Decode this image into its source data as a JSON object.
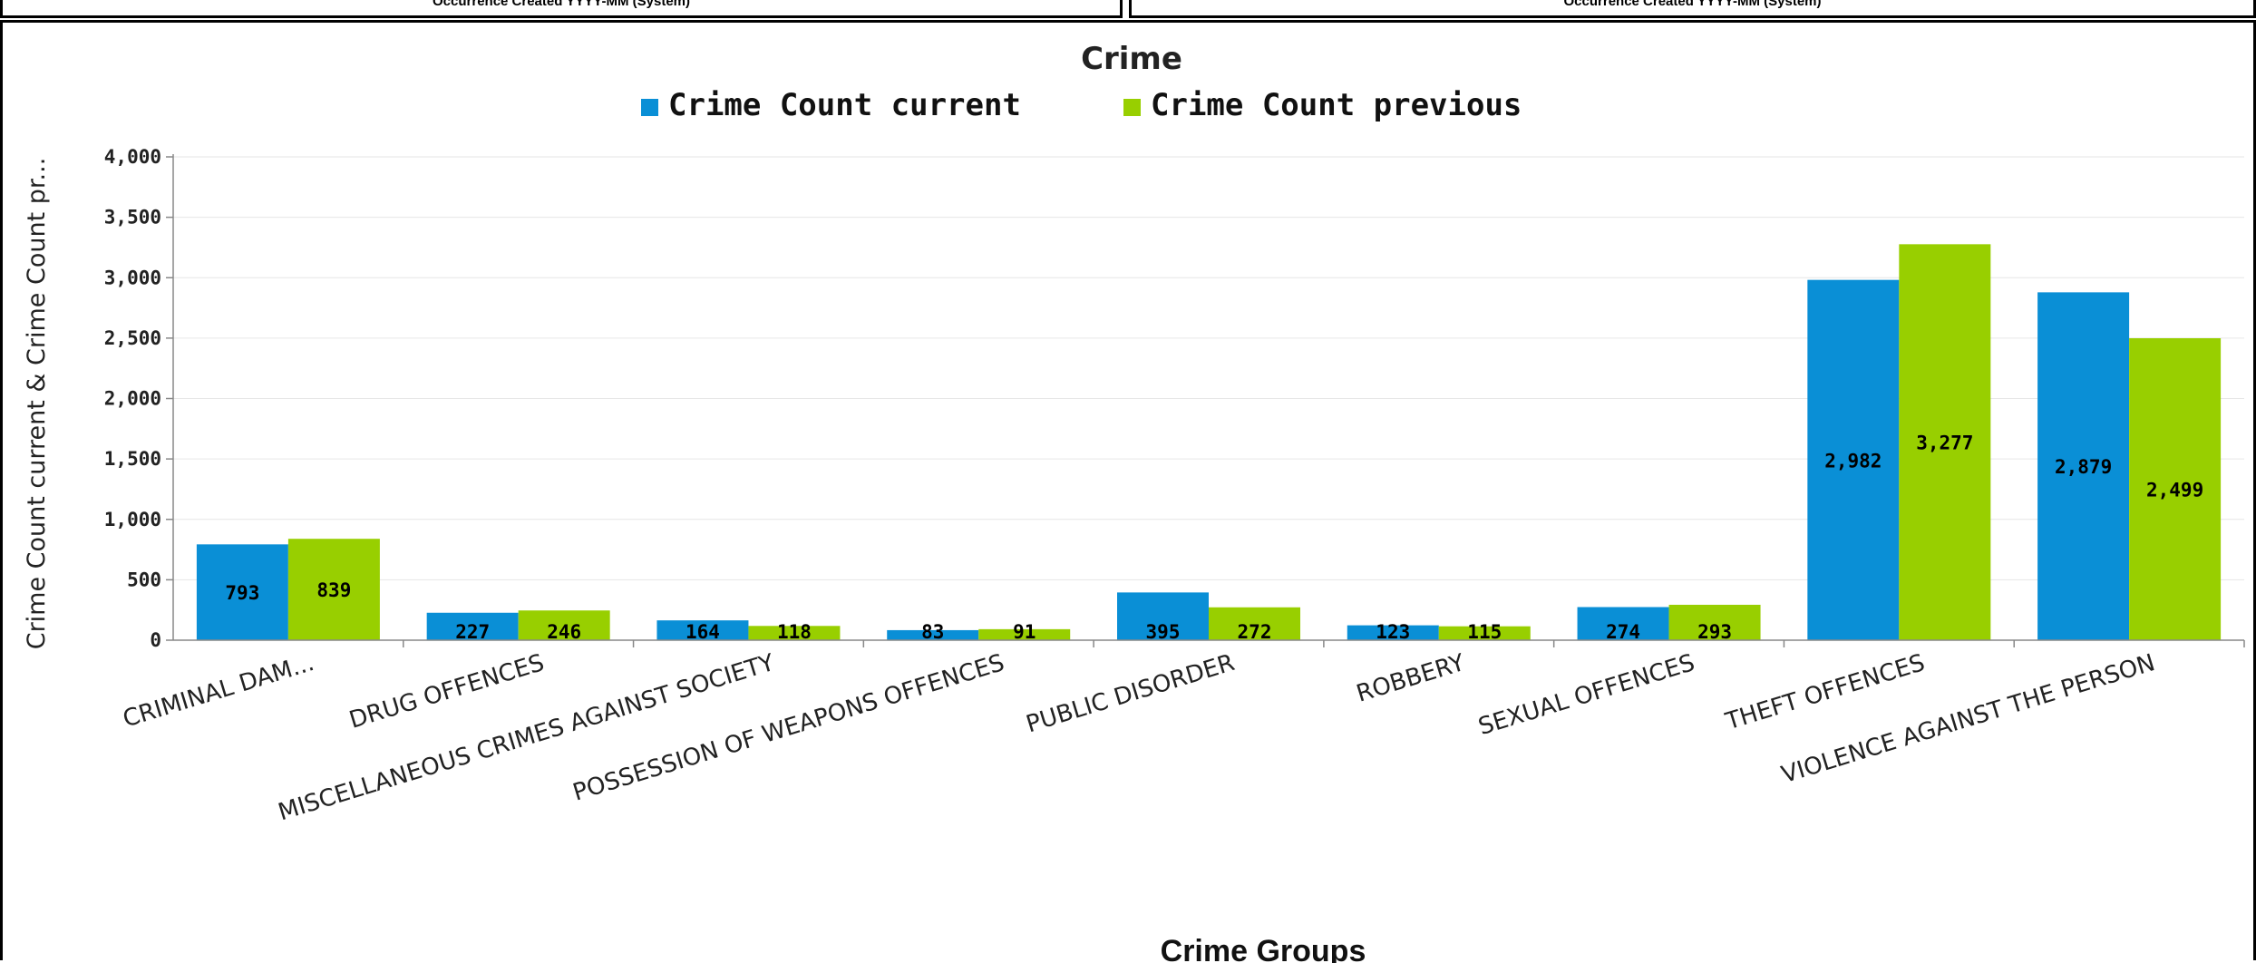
{
  "panels": {
    "left_caption": "Occurrence Created YYYY-MM (System)",
    "right_caption": "Occurrence Created YYYY-MM (System)"
  },
  "colors": {
    "current": "#0a8fd6",
    "previous": "#98cf00",
    "axis": "#888888",
    "grid": "#e6e6e6"
  },
  "chart_data": {
    "type": "bar",
    "title": "Crime",
    "xlabel": "Crime Groups",
    "ylabel": "Crime Count current & Crime Count pr...",
    "ylim": [
      0,
      4000
    ],
    "yticks": [
      "0",
      "500",
      "1,000",
      "1,500",
      "2,000",
      "2,500",
      "3,000",
      "3,500",
      "4,000"
    ],
    "legend_position": "top",
    "grid": true,
    "categories": [
      "CRIMINAL DAM...",
      "DRUG OFFENCES",
      "MISCELLANEOUS CRIMES AGAINST SOCIETY",
      "POSSESSION OF WEAPONS OFFENCES",
      "PUBLIC DISORDER",
      "ROBBERY",
      "SEXUAL OFFENCES",
      "THEFT OFFENCES",
      "VIOLENCE AGAINST THE PERSON"
    ],
    "series": [
      {
        "name": "Crime Count current",
        "values": [
          793,
          227,
          164,
          83,
          395,
          123,
          274,
          2982,
          2879
        ],
        "labels": [
          "793",
          "227",
          "164",
          "83",
          "395",
          "123",
          "274",
          "2,982",
          "2,879"
        ]
      },
      {
        "name": "Crime Count previous",
        "values": [
          839,
          246,
          118,
          91,
          272,
          115,
          293,
          3277,
          2499
        ],
        "labels": [
          "839",
          "246",
          "118",
          "91",
          "272",
          "115",
          "293",
          "3,277",
          "2,499"
        ]
      }
    ]
  }
}
